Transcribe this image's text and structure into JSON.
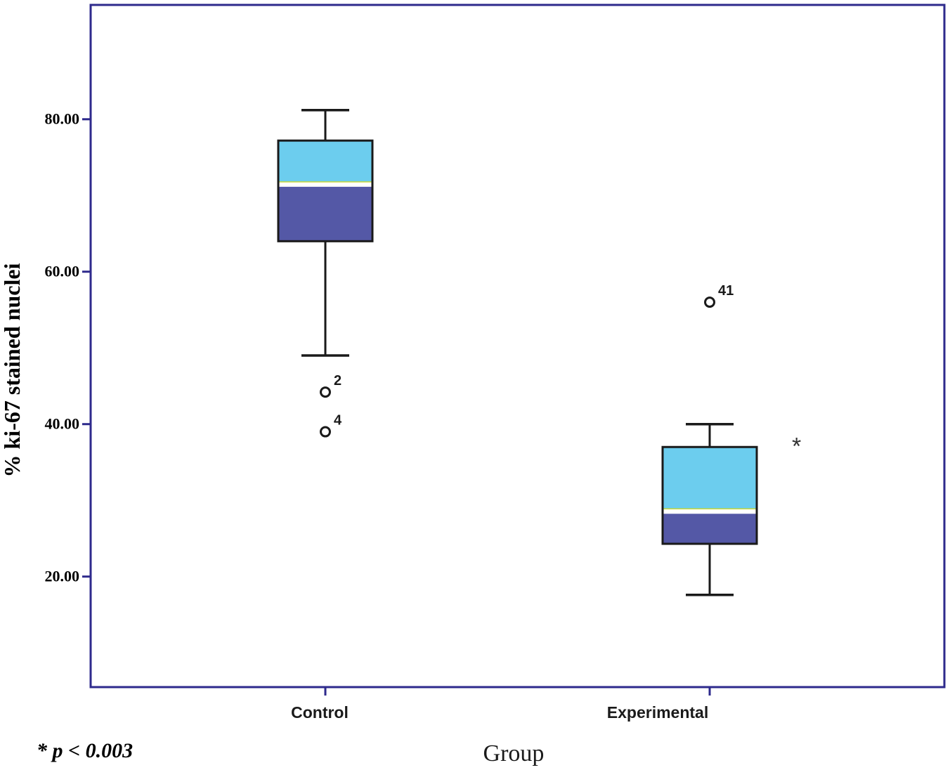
{
  "chart_data": {
    "type": "box",
    "ylabel": "% ki-67 stained nuclei",
    "xlabel": "Group",
    "ylim": [
      5.5,
      95
    ],
    "yticks": [
      "20.00",
      "40.00",
      "60.00",
      "80.00"
    ],
    "ytick_values": [
      20,
      40,
      60,
      80
    ],
    "categories": [
      "Control",
      "Experimental"
    ],
    "boxes": [
      {
        "category": "Control",
        "whisker_low": 49,
        "q1": 64,
        "median": 71.6,
        "q3": 77.2,
        "whisker_high": 81.2,
        "outliers": [
          {
            "value": 44.2,
            "label": "2"
          },
          {
            "value": 39,
            "label": "4"
          }
        ]
      },
      {
        "category": "Experimental",
        "whisker_low": 17.6,
        "q1": 24.3,
        "median": 28.7,
        "q3": 37,
        "whisker_high": 40,
        "outliers": [
          {
            "value": 56,
            "label": "41"
          }
        ],
        "significance_marker": "*"
      }
    ],
    "colors": {
      "frame": "#2e2a8c",
      "box_upper": "#6ccdee",
      "box_lower": "#5458a6",
      "box_edge": "#1a1a1a",
      "median_line": "#ffffff"
    },
    "footnote": "* p < 0.003"
  }
}
